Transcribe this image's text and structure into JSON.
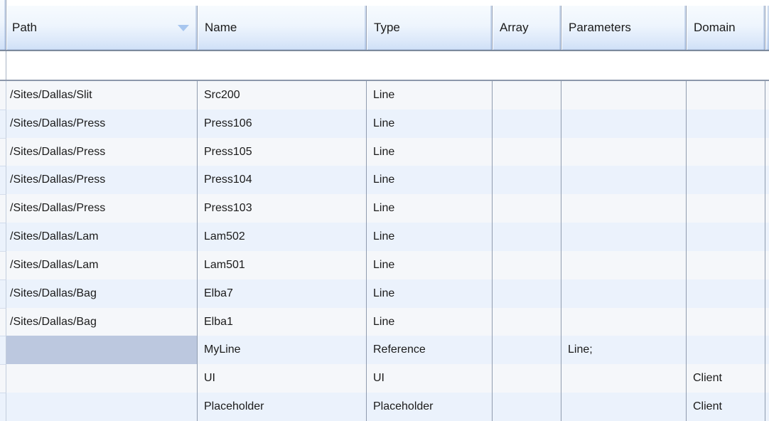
{
  "grid": {
    "columns": [
      {
        "id": "path",
        "label": "Path",
        "sort": "descending"
      },
      {
        "id": "name",
        "label": "Name",
        "sort": null
      },
      {
        "id": "type",
        "label": "Type",
        "sort": null
      },
      {
        "id": "array",
        "label": "Array",
        "sort": null
      },
      {
        "id": "parameters",
        "label": "Parameters",
        "sort": null
      },
      {
        "id": "domain",
        "label": "Domain",
        "sort": null
      }
    ],
    "rows": [
      {
        "path": "/Sites/Dallas/Slit",
        "name": "Src200",
        "type": "Line",
        "array": "",
        "parameters": "",
        "domain": ""
      },
      {
        "path": "/Sites/Dallas/Press",
        "name": "Press106",
        "type": "Line",
        "array": "",
        "parameters": "",
        "domain": ""
      },
      {
        "path": "/Sites/Dallas/Press",
        "name": "Press105",
        "type": "Line",
        "array": "",
        "parameters": "",
        "domain": ""
      },
      {
        "path": "/Sites/Dallas/Press",
        "name": "Press104",
        "type": "Line",
        "array": "",
        "parameters": "",
        "domain": ""
      },
      {
        "path": "/Sites/Dallas/Press",
        "name": "Press103",
        "type": "Line",
        "array": "",
        "parameters": "",
        "domain": ""
      },
      {
        "path": "/Sites/Dallas/Lam",
        "name": "Lam502",
        "type": "Line",
        "array": "",
        "parameters": "",
        "domain": ""
      },
      {
        "path": "/Sites/Dallas/Lam",
        "name": "Lam501",
        "type": "Line",
        "array": "",
        "parameters": "",
        "domain": ""
      },
      {
        "path": "/Sites/Dallas/Bag",
        "name": "Elba7",
        "type": "Line",
        "array": "",
        "parameters": "",
        "domain": ""
      },
      {
        "path": "/Sites/Dallas/Bag",
        "name": "Elba1",
        "type": "Line",
        "array": "",
        "parameters": "",
        "domain": ""
      },
      {
        "path": "",
        "name": "MyLine",
        "type": "Reference",
        "array": "",
        "parameters": "Line;",
        "domain": ""
      },
      {
        "path": "",
        "name": "UI",
        "type": "UI",
        "array": "",
        "parameters": "",
        "domain": "Client"
      },
      {
        "path": "",
        "name": "Placeholder",
        "type": "Placeholder",
        "array": "",
        "parameters": "",
        "domain": "Client"
      }
    ],
    "selection": {
      "row_index": 9,
      "column": "path"
    },
    "new_item_row": ""
  },
  "icons": {
    "sort_descending_icon": "triangle-down"
  },
  "colors": {
    "header_gradient_top": "#F7FBFE",
    "header_gradient_bottom": "#CFE0F7",
    "header_bottom_border": "#7D8A9D",
    "grid_line": "#8F9BAE",
    "row_light": "#F5F7FA",
    "row_blue": "#EBF2FC",
    "selected_cell": "#BCC8DF",
    "sort_arrow": "#A7C6EF",
    "text": "#1B1B1B"
  }
}
